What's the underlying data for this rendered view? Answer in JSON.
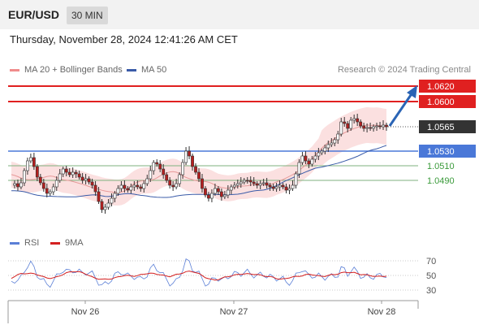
{
  "header": {
    "pair": "EUR/USD",
    "timeframe": "30 MIN"
  },
  "datetime": "Thursday, November 28, 2024 12:41:26 AM CET",
  "legend": {
    "bollinger": {
      "label": "MA 20 + Bollinger Bands",
      "color": "#f08c8c"
    },
    "ma50": {
      "label": "MA 50",
      "color": "#3a5ba8"
    }
  },
  "copyright": "Research © 2024 Trading Central",
  "rsi_legend": {
    "rsi": {
      "label": "RSI",
      "color": "#5b7fd6"
    },
    "ma9": {
      "label": "9MA",
      "color": "#d42020"
    }
  },
  "levels": [
    {
      "value": "1.0620",
      "style": "resistance"
    },
    {
      "value": "1.0600",
      "style": "resistance"
    },
    {
      "value": "1.0565",
      "style": "current"
    },
    {
      "value": "1.0530",
      "style": "pivot"
    },
    {
      "value": "1.0510",
      "style": "support"
    },
    {
      "value": "1.0490",
      "style": "support"
    }
  ],
  "rsi_ticks": [
    "70",
    "50",
    "30"
  ],
  "x_ticks": [
    "Nov 26",
    "Nov 27",
    "Nov 28"
  ],
  "colors": {
    "resistance": "#e02020",
    "pivot": "#4a78d8",
    "support": "#7fb27f",
    "support_text": "#3a9a3a",
    "current_box": "#333333",
    "up_candle": "#ffffff",
    "down_candle": "#b51f1f",
    "arrow": "#2a64b5"
  }
}
